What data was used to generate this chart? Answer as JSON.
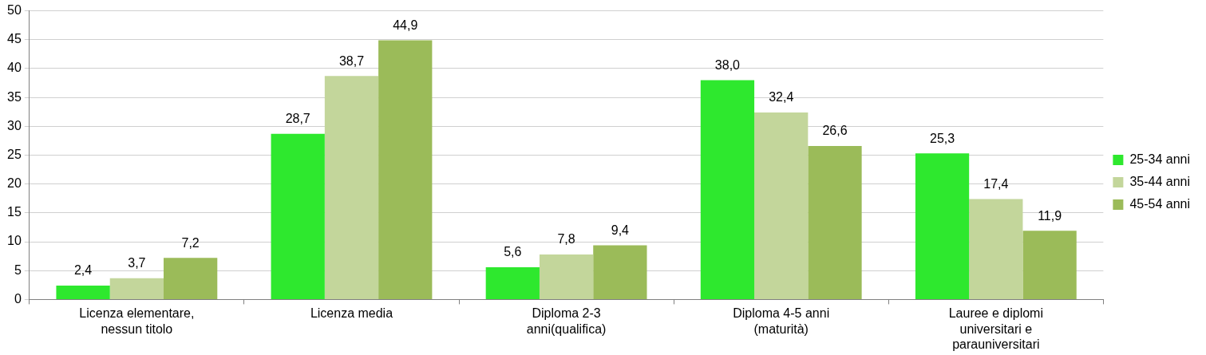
{
  "chart_data": {
    "type": "bar",
    "categories": [
      "Licenza elementare, nessun titolo",
      "Licenza media",
      "Diploma 2-3 anni(qualifica)",
      "Diploma 4-5 anni (maturità)",
      "Lauree e diplomi universitari e parauniversitari"
    ],
    "series": [
      {
        "name": "25-34 anni",
        "color": "#2ee82e",
        "values": [
          2.4,
          28.7,
          5.6,
          38.0,
          25.3
        ],
        "value_labels": [
          "2,4",
          "28,7",
          "5,6",
          "38,0",
          "25,3"
        ]
      },
      {
        "name": "35-44 anni",
        "color": "#c3d69b",
        "values": [
          3.7,
          38.7,
          7.8,
          32.4,
          17.4
        ],
        "value_labels": [
          "3,7",
          "38,7",
          "7,8",
          "32,4",
          "17,4"
        ]
      },
      {
        "name": "45-54 anni",
        "color": "#9bbb59",
        "values": [
          7.2,
          44.9,
          9.4,
          26.6,
          11.9
        ],
        "value_labels": [
          "7,2",
          "44,9",
          "9,4",
          "26,6",
          "11,9"
        ]
      }
    ],
    "ylim": [
      0,
      50
    ],
    "yticks": [
      0,
      5,
      10,
      15,
      20,
      25,
      30,
      35,
      40,
      45,
      50
    ],
    "grid": "y",
    "legend": "right"
  }
}
